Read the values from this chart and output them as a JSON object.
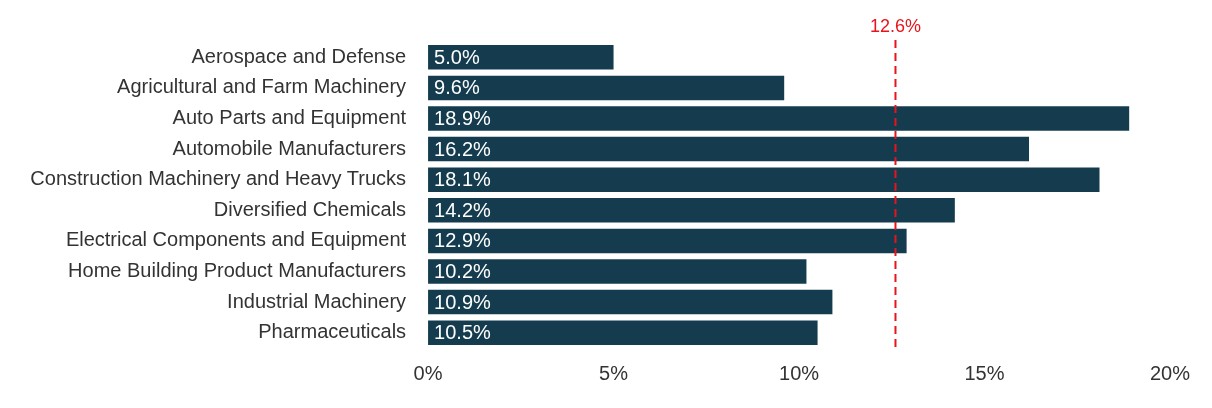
{
  "chart_data": {
    "type": "bar",
    "orientation": "horizontal",
    "categories": [
      "Aerospace and Defense",
      "Agricultural and Farm Machinery",
      "Auto Parts and Equipment",
      "Automobile Manufacturers",
      "Construction Machinery and Heavy Trucks",
      "Diversified Chemicals",
      "Electrical Components and Equipment",
      "Home Building Product Manufacturers",
      "Industrial Machinery",
      "Pharmaceuticals"
    ],
    "values": [
      5.0,
      9.6,
      18.9,
      16.2,
      18.1,
      14.2,
      12.9,
      10.2,
      10.9,
      10.5
    ],
    "value_labels": [
      "5.0%",
      "9.6%",
      "18.9%",
      "16.2%",
      "18.1%",
      "14.2%",
      "12.9%",
      "10.2%",
      "10.9%",
      "10.5%"
    ],
    "color": "#143c4e",
    "xlim": [
      0,
      20
    ],
    "xticks": [
      {
        "value": 0,
        "label": "0%"
      },
      {
        "value": 5,
        "label": "5%"
      },
      {
        "value": 10,
        "label": "10%"
      },
      {
        "value": 15,
        "label": "15%"
      },
      {
        "value": 20,
        "label": "20%"
      }
    ],
    "ref_lines": [
      {
        "axis": "x",
        "value": 12.6,
        "label": "12.6%",
        "color": "#e8141c",
        "line_style": "dashed"
      }
    ],
    "grid": false,
    "legend": false
  }
}
